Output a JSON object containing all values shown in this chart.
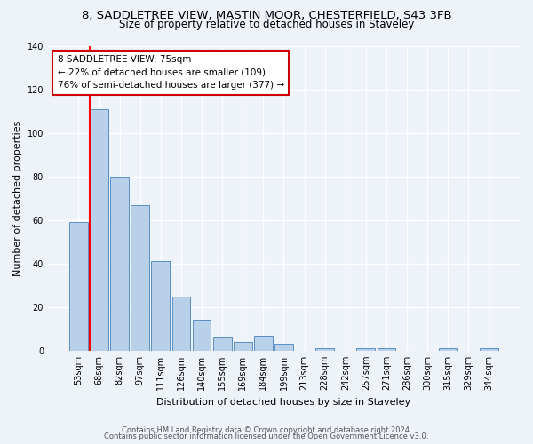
{
  "title1": "8, SADDLETREE VIEW, MASTIN MOOR, CHESTERFIELD, S43 3FB",
  "title2": "Size of property relative to detached houses in Staveley",
  "xlabel": "Distribution of detached houses by size in Staveley",
  "ylabel": "Number of detached properties",
  "bar_labels": [
    "53sqm",
    "68sqm",
    "82sqm",
    "97sqm",
    "111sqm",
    "126sqm",
    "140sqm",
    "155sqm",
    "169sqm",
    "184sqm",
    "199sqm",
    "213sqm",
    "228sqm",
    "242sqm",
    "257sqm",
    "271sqm",
    "286sqm",
    "300sqm",
    "315sqm",
    "329sqm",
    "344sqm"
  ],
  "bar_values": [
    59,
    111,
    80,
    67,
    41,
    25,
    14,
    6,
    4,
    7,
    3,
    0,
    1,
    0,
    1,
    1,
    0,
    0,
    1,
    0,
    1
  ],
  "bar_color": "#b8d0ea",
  "bar_edge_color": "#5a8fc2",
  "red_line_x": 0.55,
  "annotation_text": "8 SADDLETREE VIEW: 75sqm\n← 22% of detached houses are smaller (109)\n76% of semi-detached houses are larger (377) →",
  "ylim": [
    0,
    140
  ],
  "yticks": [
    0,
    20,
    40,
    60,
    80,
    100,
    120,
    140
  ],
  "footer1": "Contains HM Land Registry data © Crown copyright and database right 2024.",
  "footer2": "Contains public sector information licensed under the Open Government Licence v3.0.",
  "bg_color": "#eef2f9",
  "grid_color": "#ffffff",
  "title1_fontsize": 9.5,
  "title2_fontsize": 8.5,
  "annotation_fontsize": 7.5,
  "ylabel_fontsize": 8,
  "xlabel_fontsize": 8,
  "tick_fontsize": 7,
  "footer_fontsize": 6,
  "annotation_box_color": "#ffffff",
  "annotation_box_edge": "#cc0000"
}
